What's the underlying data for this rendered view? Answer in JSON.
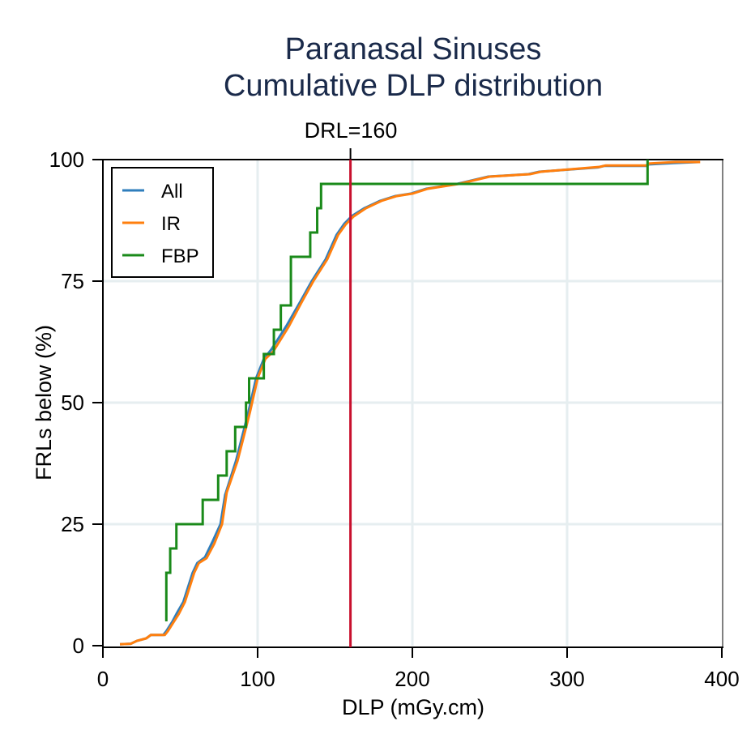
{
  "chart_data": {
    "type": "line",
    "title": [
      "Paranasal Sinuses",
      "Cumulative DLP distribution"
    ],
    "xlabel": "DLP (mGy.cm)",
    "ylabel": "FRLs below (%)",
    "xlim": [
      0,
      400
    ],
    "ylim": [
      0,
      100
    ],
    "xticks": [
      0,
      100,
      200,
      300,
      400
    ],
    "yticks": [
      0,
      25,
      50,
      75,
      100
    ],
    "grid": true,
    "legend_position": "top-left",
    "reference_line": {
      "x": 160,
      "label": "DRL=160",
      "color": "#c8102e"
    },
    "series": [
      {
        "name": "All",
        "color": "#2f7ebc",
        "step": false,
        "points": [
          [
            11,
            0.3
          ],
          [
            18,
            0.4
          ],
          [
            22,
            1
          ],
          [
            28,
            1.5
          ],
          [
            31,
            2.2
          ],
          [
            39,
            2.2
          ],
          [
            41,
            3
          ],
          [
            45,
            5
          ],
          [
            48,
            6.8
          ],
          [
            52,
            9
          ],
          [
            55,
            12
          ],
          [
            58,
            15
          ],
          [
            61,
            17
          ],
          [
            66,
            18.2
          ],
          [
            71,
            21.5
          ],
          [
            76,
            25
          ],
          [
            79,
            31
          ],
          [
            86,
            38
          ],
          [
            94,
            48
          ],
          [
            99,
            55
          ],
          [
            104,
            59
          ],
          [
            109,
            61
          ],
          [
            119,
            66
          ],
          [
            128,
            71
          ],
          [
            135,
            75
          ],
          [
            144,
            79.5
          ],
          [
            151,
            84.5
          ],
          [
            156,
            86.8
          ],
          [
            161,
            88.4
          ],
          [
            169,
            90
          ],
          [
            179,
            91.5
          ],
          [
            189,
            92.5
          ],
          [
            199,
            93
          ],
          [
            209,
            94
          ],
          [
            229,
            95
          ],
          [
            249,
            96.5
          ],
          [
            275,
            97
          ],
          [
            282,
            97.5
          ],
          [
            320,
            98.4
          ],
          [
            324,
            98.7
          ],
          [
            351,
            98.7
          ],
          [
            352,
            99
          ],
          [
            369,
            99.3
          ],
          [
            385,
            99.5
          ]
        ]
      },
      {
        "name": "IR",
        "color": "#ff7f0e",
        "step": false,
        "points": [
          [
            11,
            0.3
          ],
          [
            18,
            0.4
          ],
          [
            22,
            1
          ],
          [
            28,
            1.5
          ],
          [
            31,
            2.2
          ],
          [
            40,
            2.2
          ],
          [
            42,
            3
          ],
          [
            46,
            5
          ],
          [
            49,
            6.5
          ],
          [
            53,
            9
          ],
          [
            56,
            12
          ],
          [
            59,
            15
          ],
          [
            62,
            17
          ],
          [
            67,
            18
          ],
          [
            72,
            21
          ],
          [
            77,
            25
          ],
          [
            80,
            31.5
          ],
          [
            87,
            38
          ],
          [
            95,
            48
          ],
          [
            100,
            55
          ],
          [
            105,
            59
          ],
          [
            110,
            60.5
          ],
          [
            120,
            65.6
          ],
          [
            129,
            71
          ],
          [
            136,
            75
          ],
          [
            145,
            79.5
          ],
          [
            152,
            84.5
          ],
          [
            157,
            86.7
          ],
          [
            162,
            88.3
          ],
          [
            170,
            90
          ],
          [
            180,
            91.5
          ],
          [
            190,
            92.5
          ],
          [
            200,
            93
          ],
          [
            210,
            94
          ],
          [
            230,
            95
          ],
          [
            250,
            96.5
          ],
          [
            276,
            97
          ],
          [
            283,
            97.5
          ],
          [
            321,
            98.5
          ],
          [
            325,
            98.8
          ],
          [
            352,
            98.8
          ],
          [
            353,
            99.2
          ],
          [
            370,
            99.5
          ],
          [
            386,
            99.5
          ]
        ]
      },
      {
        "name": "FBP",
        "color": "#1a8a1a",
        "step": true,
        "points": [
          [
            41,
            5
          ],
          [
            41,
            10
          ],
          [
            41,
            15
          ],
          [
            43.5,
            20
          ],
          [
            47.5,
            25
          ],
          [
            64.5,
            30
          ],
          [
            74.5,
            35
          ],
          [
            80,
            40
          ],
          [
            85.5,
            45
          ],
          [
            92.5,
            50
          ],
          [
            94.5,
            55
          ],
          [
            104,
            60
          ],
          [
            110.5,
            65
          ],
          [
            115,
            70
          ],
          [
            121.5,
            75
          ],
          [
            121.5,
            80
          ],
          [
            134,
            85
          ],
          [
            138.5,
            90
          ],
          [
            141,
            95
          ],
          [
            352,
            100
          ]
        ]
      }
    ]
  }
}
